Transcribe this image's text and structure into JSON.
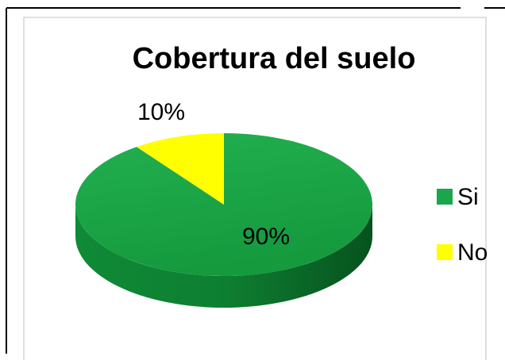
{
  "chart_data": {
    "type": "pie",
    "title": "Cobertura del suelo",
    "categories": [
      "Si",
      "No"
    ],
    "values": [
      90,
      10
    ],
    "value_labels": [
      "90%",
      "10%"
    ],
    "colors": [
      "#1aa64a",
      "#ffff00"
    ],
    "legend": "right"
  }
}
